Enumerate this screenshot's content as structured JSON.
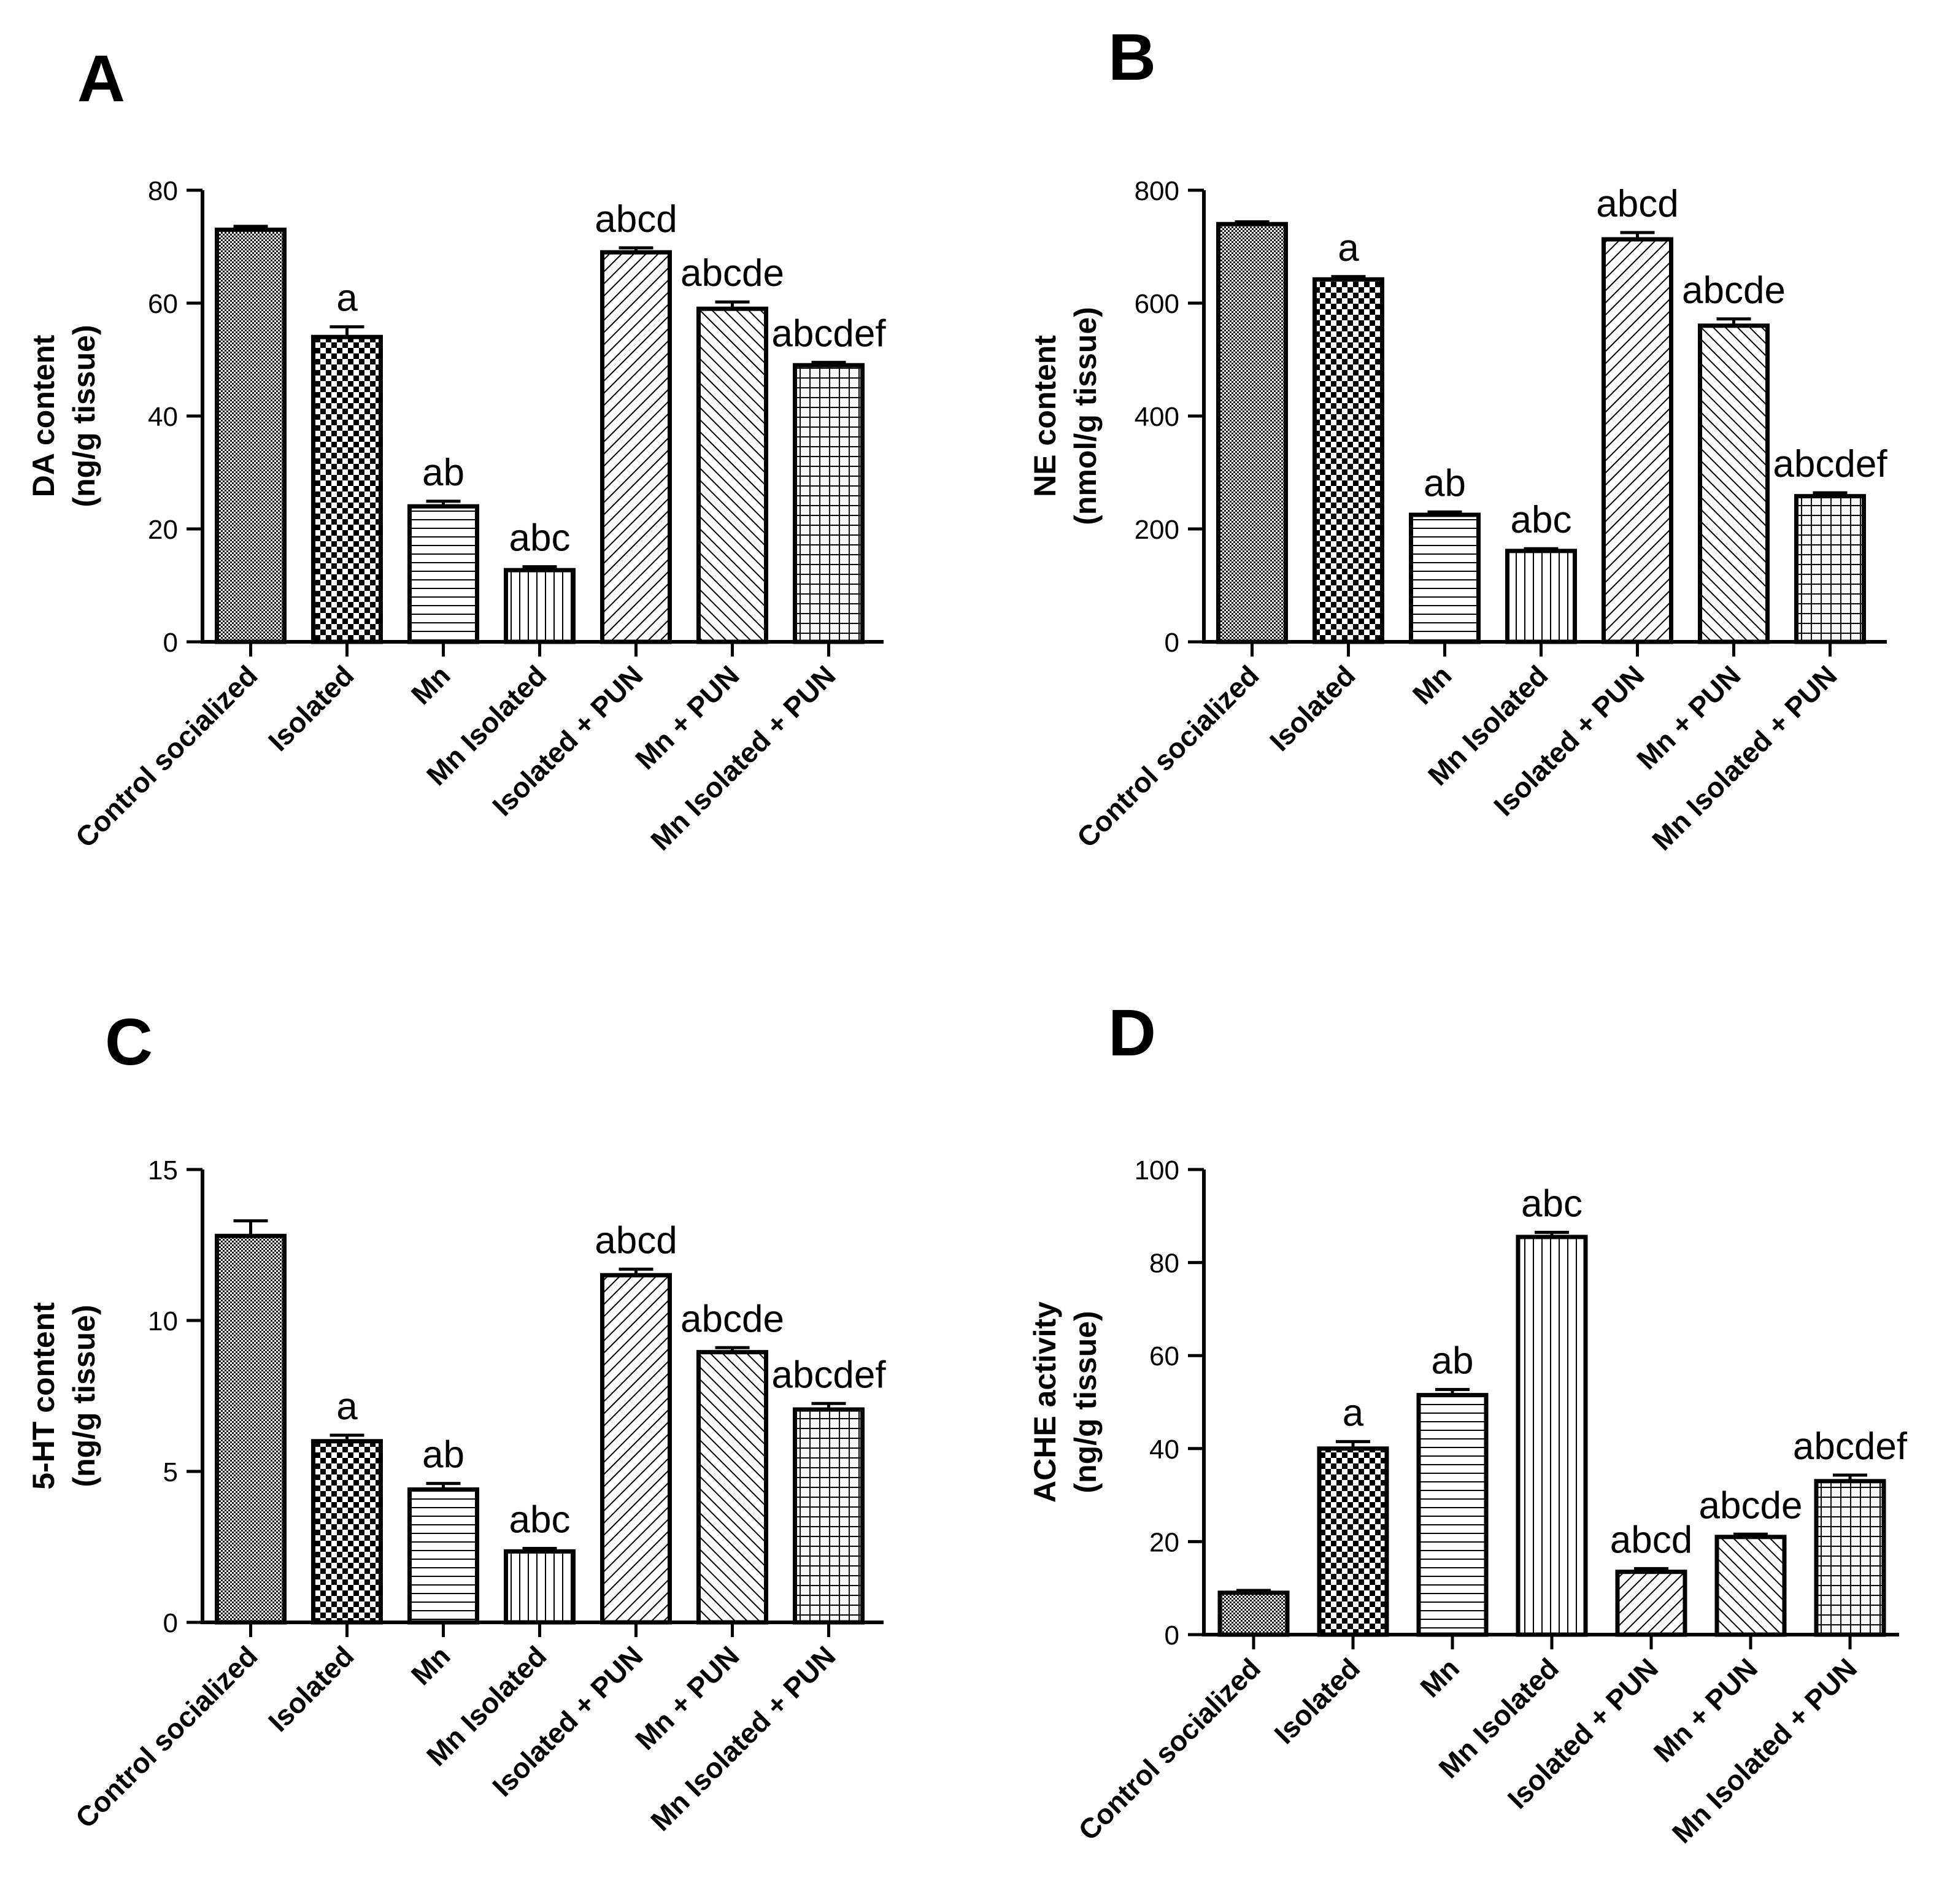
{
  "chart_data": [
    {
      "type": "bar",
      "panel": "A",
      "categories": [
        "Control socialized",
        "Isolated",
        "Mn",
        "Mn Isolated",
        "Isolated + PUN",
        "Mn + PUN",
        "Mn Isolated + PUN"
      ],
      "values": [
        73,
        54,
        24,
        12.7,
        69,
        59,
        49
      ],
      "errors": [
        0.6,
        1.8,
        0.9,
        0.6,
        0.8,
        1.2,
        0.5
      ],
      "annotations": [
        "",
        "a",
        "ab",
        "abc",
        "abcd",
        "abcde",
        "abcdef"
      ],
      "ylabel_line1": "DA content",
      "ylabel_line2": "(ng/g tissue)",
      "ylim": [
        0,
        80
      ],
      "yticks": [
        0,
        20,
        40,
        60,
        80
      ],
      "patterns": [
        "dots",
        "checker",
        "hlines",
        "vlines",
        "diag-up",
        "diag-down",
        "grid"
      ]
    },
    {
      "type": "bar",
      "panel": "B",
      "categories": [
        "Control socialized",
        "Isolated",
        "Mn",
        "Mn Isolated",
        "Isolated + PUN",
        "Mn + PUN",
        "Mn Isolated + PUN"
      ],
      "values": [
        740,
        642,
        225,
        161,
        713,
        560,
        258
      ],
      "errors": [
        4,
        5,
        5,
        4,
        12,
        12,
        6
      ],
      "annotations": [
        "",
        "a",
        "ab",
        "abc",
        "abcd",
        "abcde",
        "abcdef"
      ],
      "ylabel_line1": "NE content",
      "ylabel_line2": "(nmol/g tissue)",
      "ylim": [
        0,
        800
      ],
      "yticks": [
        0,
        200,
        400,
        600,
        800
      ],
      "patterns": [
        "dots",
        "checker",
        "hlines",
        "vlines",
        "diag-up",
        "diag-down",
        "grid"
      ]
    },
    {
      "type": "bar",
      "panel": "C",
      "categories": [
        "Control socialized",
        "Isolated",
        "Mn",
        "Mn Isolated",
        "Isolated + PUN",
        "Mn + PUN",
        "Mn Isolated + PUN"
      ],
      "values": [
        12.8,
        6.0,
        4.4,
        2.35,
        11.5,
        8.95,
        7.05
      ],
      "errors": [
        0.5,
        0.2,
        0.2,
        0.1,
        0.2,
        0.15,
        0.2
      ],
      "annotations": [
        "",
        "a",
        "ab",
        "abc",
        "abcd",
        "abcde",
        "abcdef"
      ],
      "ylabel_line1": "5-HT content",
      "ylabel_line2": "(ng/g tissue)",
      "ylim": [
        0,
        15
      ],
      "yticks": [
        0,
        5,
        10,
        15
      ],
      "patterns": [
        "dots",
        "checker",
        "hlines",
        "vlines",
        "diag-up",
        "diag-down",
        "grid"
      ]
    },
    {
      "type": "bar",
      "panel": "D",
      "categories": [
        "Control socialized",
        "Isolated",
        "Mn",
        "Mn Isolated",
        "Isolated + PUN",
        "Mn + PUN",
        "Mn Isolated + PUN"
      ],
      "values": [
        9,
        40,
        51.5,
        85.5,
        13.5,
        21,
        33
      ],
      "errors": [
        0.5,
        1.5,
        1.2,
        1.0,
        0.7,
        0.6,
        1.3
      ],
      "annotations": [
        "",
        "a",
        "ab",
        "abc",
        "abcd",
        "abcde",
        "abcdef"
      ],
      "ylabel_line1": "ACHE activity",
      "ylabel_line2": "(ng/g tissue)",
      "ylim": [
        0,
        100
      ],
      "yticks": [
        0,
        20,
        40,
        60,
        80,
        100
      ],
      "patterns": [
        "dots",
        "checker",
        "hlines",
        "vlines",
        "diag-up",
        "diag-down",
        "grid"
      ]
    }
  ]
}
